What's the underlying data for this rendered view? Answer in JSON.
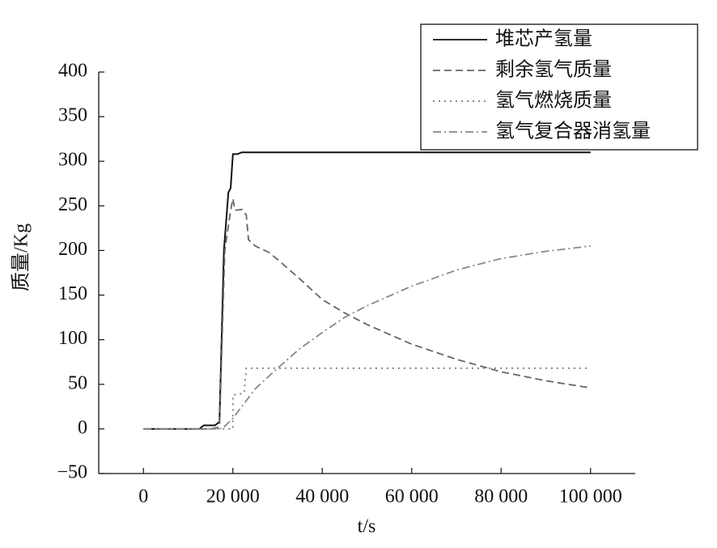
{
  "chart_data": {
    "type": "line",
    "xlabel": "t/s",
    "ylabel": "质量/Kg",
    "xlim": [
      -10000,
      110000
    ],
    "xticks": [
      0,
      {
        "value": 20000,
        "label": "20 000"
      },
      {
        "value": 40000,
        "label": "40 000"
      },
      {
        "value": 60000,
        "label": "60 000"
      },
      {
        "value": 80000,
        "label": "80 000"
      },
      {
        "value": 100000,
        "label": "100 000"
      }
    ],
    "ylim": [
      -50,
      400
    ],
    "yticks": [
      {
        "value": -50,
        "label": "−50"
      },
      0,
      50,
      100,
      150,
      200,
      250,
      300,
      350,
      400
    ],
    "legend": "top-right",
    "series": [
      {
        "name": "堆芯产氢量",
        "color": "#111111",
        "style": "solid",
        "x": [
          0,
          12500,
          13500,
          16000,
          17000,
          18000,
          19000,
          19500,
          20000,
          21000,
          22000,
          100000
        ],
        "values": [
          0,
          0,
          4,
          4,
          8,
          200,
          265,
          270,
          308,
          308,
          310,
          310
        ]
      },
      {
        "name": "剩余氢气质量",
        "color": "#666666",
        "style": "dashed",
        "x": [
          0,
          15000,
          17000,
          18200,
          19500,
          20000,
          20500,
          22000,
          23000,
          23500,
          25000,
          28000,
          30000,
          35000,
          40000,
          45000,
          50000,
          60000,
          70000,
          80000,
          90000,
          100000
        ],
        "values": [
          0,
          0,
          2,
          200,
          245,
          258,
          245,
          246,
          240,
          212,
          205,
          198,
          190,
          168,
          145,
          130,
          117,
          95,
          78,
          64,
          54,
          46
        ]
      },
      {
        "name": "氢气燃烧质量",
        "color": "#777777",
        "style": "dotted",
        "x": [
          0,
          20000,
          20000,
          22500,
          23000,
          100000
        ],
        "values": [
          0,
          0,
          38,
          40,
          68,
          68
        ]
      },
      {
        "name": "氢气复合器消氢量",
        "color": "#888888",
        "style": "dashdot",
        "x": [
          0,
          17000,
          18000,
          20000,
          22000,
          25000,
          30000,
          35000,
          40000,
          45000,
          50000,
          60000,
          70000,
          80000,
          90000,
          100000
        ],
        "values": [
          0,
          0,
          2,
          12,
          25,
          45,
          68,
          90,
          108,
          125,
          138,
          160,
          178,
          191,
          199,
          205
        ]
      }
    ]
  }
}
